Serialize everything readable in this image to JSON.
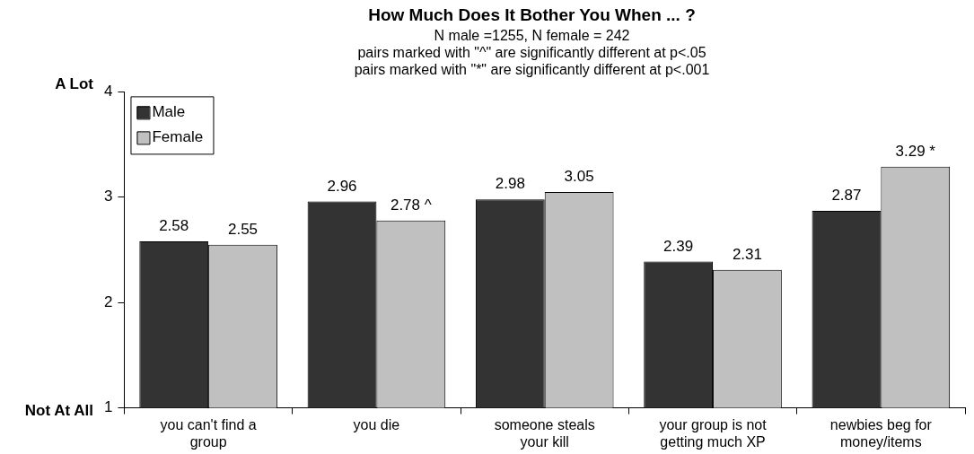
{
  "chart_data": {
    "type": "bar",
    "title": "How Much Does It Bother You When ... ?",
    "subtitle": "N male =1255, N female = 242\npairs marked with \"^\" are significantly different at p<.05\npairs marked with \"*\" are significantly different at p<.001",
    "categories": [
      "you can't find a group",
      "you die",
      "someone steals your kill",
      "your group is not getting much XP",
      "newbies beg for money/items"
    ],
    "series": [
      {
        "name": "Male",
        "color": "#333333",
        "values": [
          2.58,
          2.96,
          2.98,
          2.39,
          2.87
        ],
        "value_labels": [
          "2.58",
          "2.96",
          "2.98",
          "2.39",
          "2.87"
        ]
      },
      {
        "name": "Female",
        "color": "#c0c0c0",
        "values": [
          2.55,
          2.78,
          3.05,
          2.31,
          3.29
        ],
        "value_labels": [
          "2.55",
          "2.78 ^",
          "3.05",
          "2.31",
          "3.29 *"
        ]
      }
    ],
    "ylim": [
      1,
      4
    ],
    "yticks": [
      1,
      2,
      3,
      4
    ],
    "grid": false,
    "legend": "top left",
    "annotations": [
      "A Lot",
      "Not At All"
    ]
  }
}
